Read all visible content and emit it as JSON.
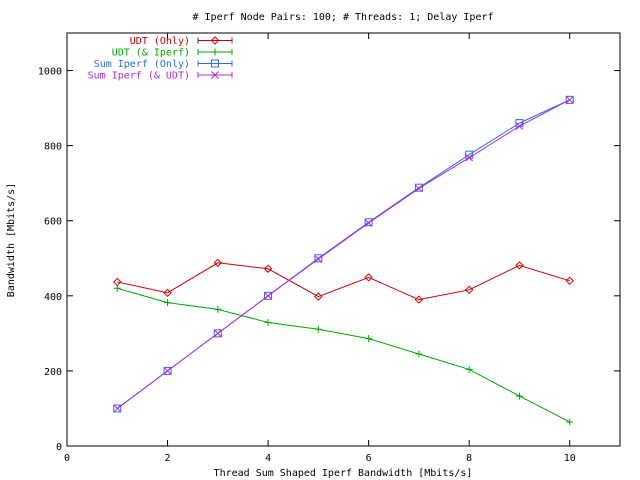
{
  "chart_data": {
    "type": "line",
    "title": "# Iperf Node Pairs: 100; # Threads: 1; Delay Iperf",
    "xlabel": "Thread Sum Shaped Iperf Bandwidth [Mbits/s]",
    "ylabel": "Bandwidth [Mbits/s]",
    "xlim": [
      0,
      11
    ],
    "ylim": [
      0,
      1100
    ],
    "x_ticks": [
      0,
      2,
      4,
      6,
      8,
      10
    ],
    "y_ticks": [
      0,
      200,
      400,
      600,
      800,
      1000
    ],
    "grid": false,
    "legend_position": "top-left",
    "x": [
      1,
      2,
      3,
      4,
      5,
      6,
      7,
      8,
      9,
      10
    ],
    "series": [
      {
        "name": "UDT (Only)",
        "color": "#cc0000",
        "marker": "diamond",
        "values": [
          437,
          408,
          488,
          472,
          398,
          449,
          390,
          416,
          481,
          440
        ]
      },
      {
        "name": "UDT (& Iperf)",
        "color": "#00aa00",
        "marker": "plus",
        "values": [
          420,
          382,
          364,
          329,
          311,
          286,
          245,
          204,
          133,
          64
        ]
      },
      {
        "name": "Sum Iperf (Only)",
        "color": "#2a6ee0",
        "marker": "square",
        "values": [
          100,
          200,
          300,
          400,
          500,
          596,
          688,
          776,
          860,
          922
        ]
      },
      {
        "name": "Sum Iperf (& UDT)",
        "color": "#b02ae0",
        "marker": "x",
        "values": [
          100,
          200,
          300,
          400,
          498,
          594,
          686,
          768,
          852,
          922
        ]
      }
    ]
  }
}
